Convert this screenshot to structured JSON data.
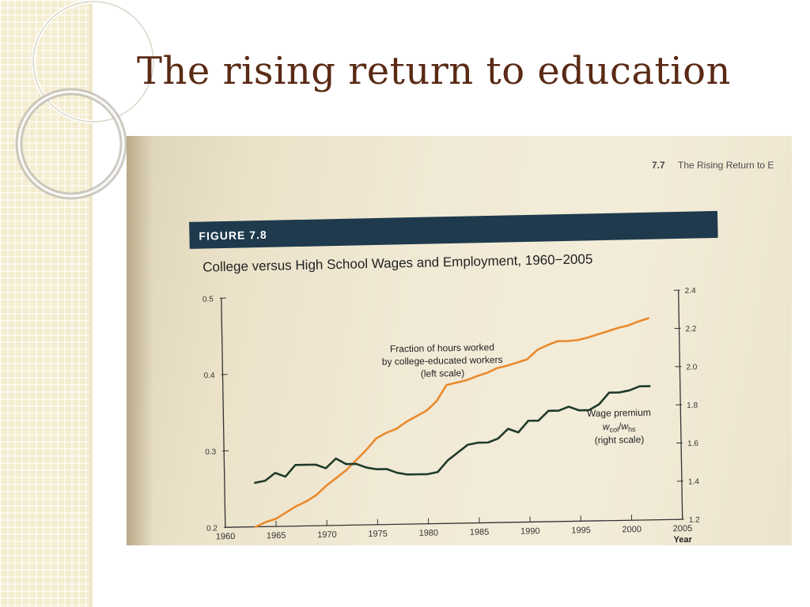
{
  "slide": {
    "title": "The rising return to education"
  },
  "book": {
    "running_header_num": "7.7",
    "running_header_text": "The Rising Return to E",
    "figure_label": "FIGURE 7.8",
    "figure_title": "College versus High School Wages and Employment, 1960−2005"
  },
  "colors": {
    "title": "#5a2a14",
    "figure_bar": "#1e3a4c",
    "fraction_series": "#e98a2c",
    "wage_series": "#1f3a2a"
  },
  "chart_data": {
    "type": "line",
    "x_label": "Year",
    "x_ticks": [
      1960,
      1965,
      1970,
      1975,
      1980,
      1985,
      1990,
      1995,
      2000,
      2005
    ],
    "xlim": [
      1960,
      2005
    ],
    "left_axis": {
      "ylim": [
        0.2,
        0.5
      ],
      "ticks": [
        "0.2",
        "0.3",
        "0.4",
        "0.5"
      ]
    },
    "right_axis": {
      "ylim": [
        1.2,
        2.4
      ],
      "ticks": [
        "1.2",
        "1.4",
        "1.6",
        "1.8",
        "2.0",
        "2.2",
        "2.4"
      ]
    },
    "annotations": {
      "fraction_line1": "Fraction of hours worked",
      "fraction_line2": "by college-educated workers",
      "fraction_line3": "(left scale)",
      "wage_line1": "Wage premium",
      "wage_line2_main_w1": "w",
      "wage_line2_sub1": "col",
      "wage_line2_slash": "/",
      "wage_line2_main_w2": "w",
      "wage_line2_sub2": "hs",
      "wage_line3": "(right scale)"
    },
    "series": [
      {
        "axis": "left",
        "x": [
          1963,
          1964,
          1965,
          1966,
          1967,
          1968,
          1969,
          1970,
          1971,
          1972,
          1973,
          1974,
          1975,
          1976,
          1977,
          1978,
          1979,
          1980,
          1981,
          1982,
          1983,
          1984,
          1985,
          1986,
          1987,
          1988,
          1989,
          1990,
          1991,
          1992,
          1993,
          1994,
          1995,
          1996,
          1997,
          1998,
          1999,
          2000,
          2001,
          2002
        ],
        "values": [
          0.2,
          0.206,
          0.21,
          0.218,
          0.226,
          0.232,
          0.24,
          0.252,
          0.262,
          0.272,
          0.285,
          0.298,
          0.313,
          0.32,
          0.325,
          0.334,
          0.341,
          0.348,
          0.36,
          0.381,
          0.384,
          0.387,
          0.392,
          0.396,
          0.402,
          0.405,
          0.409,
          0.413,
          0.425,
          0.431,
          0.436,
          0.436,
          0.437,
          0.44,
          0.444,
          0.448,
          0.452,
          0.455,
          0.46,
          0.464
        ]
      },
      {
        "axis": "right",
        "x": [
          1963,
          1964,
          1965,
          1966,
          1967,
          1968,
          1969,
          1970,
          1971,
          1972,
          1973,
          1974,
          1975,
          1976,
          1977,
          1978,
          1979,
          1980,
          1981,
          1982,
          1983,
          1984,
          1985,
          1986,
          1987,
          1988,
          1989,
          1990,
          1991,
          1992,
          1993,
          1994,
          1995,
          1996,
          1997,
          1998,
          1999,
          2000,
          2001,
          2002
        ],
        "values": [
          1.43,
          1.44,
          1.48,
          1.46,
          1.52,
          1.52,
          1.52,
          1.5,
          1.55,
          1.52,
          1.52,
          1.5,
          1.49,
          1.49,
          1.47,
          1.46,
          1.46,
          1.46,
          1.47,
          1.53,
          1.57,
          1.61,
          1.62,
          1.62,
          1.64,
          1.69,
          1.67,
          1.73,
          1.73,
          1.78,
          1.78,
          1.8,
          1.78,
          1.78,
          1.81,
          1.87,
          1.87,
          1.88,
          1.9,
          1.9
        ]
      }
    ]
  }
}
